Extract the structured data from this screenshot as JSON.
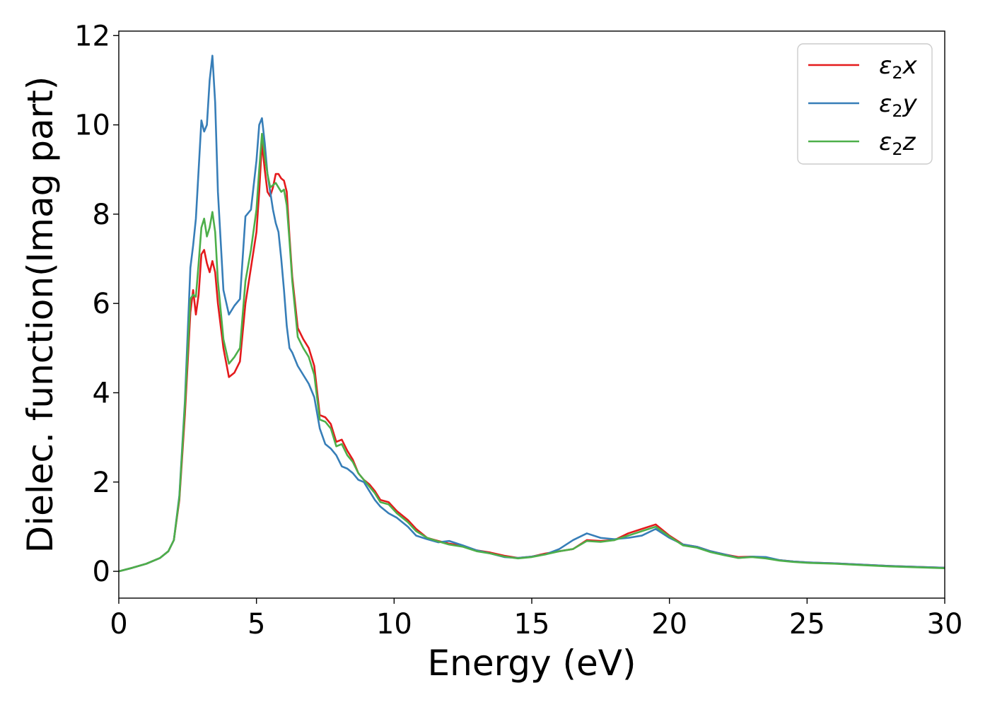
{
  "chart_data": {
    "type": "line",
    "xlabel": "Energy (eV)",
    "ylabel": "Dielec. function(Imag part)",
    "xlim": [
      0,
      30
    ],
    "ylim": [
      -0.6,
      12.1
    ],
    "xticks": [
      0,
      5,
      10,
      15,
      20,
      25,
      30
    ],
    "yticks": [
      0,
      2,
      4,
      6,
      8,
      10,
      12
    ],
    "grid": false,
    "legend_position": "top-right",
    "series": [
      {
        "name": "ε₂x",
        "legend_base": "ε",
        "legend_sub": "2",
        "legend_suffix": "x",
        "color": "#e41a1c",
        "x": [
          0,
          0.5,
          1,
          1.5,
          1.8,
          2,
          2.2,
          2.4,
          2.6,
          2.7,
          2.8,
          2.9,
          3.0,
          3.1,
          3.2,
          3.3,
          3.4,
          3.5,
          3.6,
          3.8,
          4.0,
          4.2,
          4.4,
          4.6,
          4.8,
          5.0,
          5.1,
          5.2,
          5.3,
          5.4,
          5.5,
          5.6,
          5.7,
          5.8,
          5.9,
          6.0,
          6.1,
          6.2,
          6.3,
          6.5,
          6.7,
          6.9,
          7.1,
          7.3,
          7.5,
          7.7,
          7.9,
          8.1,
          8.3,
          8.5,
          8.7,
          8.9,
          9.1,
          9.3,
          9.5,
          9.8,
          10.1,
          10.5,
          10.8,
          11.2,
          11.6,
          12,
          12.5,
          13,
          13.5,
          14,
          14.5,
          15,
          15.5,
          16,
          16.5,
          17,
          17.5,
          18,
          18.5,
          19,
          19.5,
          20,
          20.5,
          21,
          21.5,
          22,
          22.5,
          23,
          23.5,
          24,
          24.5,
          25,
          26,
          27,
          28,
          29,
          30
        ],
        "y": [
          0,
          0.08,
          0.17,
          0.3,
          0.45,
          0.7,
          1.6,
          3.5,
          5.8,
          6.3,
          5.75,
          6.2,
          7.1,
          7.2,
          6.9,
          6.7,
          6.95,
          6.7,
          6.0,
          5.0,
          4.35,
          4.45,
          4.7,
          6.0,
          6.8,
          7.6,
          8.5,
          9.6,
          9.0,
          8.5,
          8.4,
          8.6,
          8.9,
          8.9,
          8.8,
          8.75,
          8.5,
          7.5,
          6.6,
          5.45,
          5.2,
          5.0,
          4.6,
          3.5,
          3.45,
          3.3,
          2.9,
          2.95,
          2.7,
          2.5,
          2.2,
          2.05,
          1.95,
          1.8,
          1.6,
          1.55,
          1.35,
          1.15,
          0.95,
          0.75,
          0.68,
          0.62,
          0.57,
          0.47,
          0.42,
          0.35,
          0.3,
          0.33,
          0.4,
          0.45,
          0.5,
          0.7,
          0.68,
          0.7,
          0.85,
          0.95,
          1.05,
          0.8,
          0.6,
          0.55,
          0.45,
          0.38,
          0.32,
          0.33,
          0.3,
          0.25,
          0.22,
          0.2,
          0.18,
          0.15,
          0.12,
          0.1,
          0.08
        ]
      },
      {
        "name": "ε₂y",
        "legend_base": "ε",
        "legend_sub": "2",
        "legend_suffix": "y",
        "color": "#377eb8",
        "x": [
          0,
          0.5,
          1,
          1.5,
          1.8,
          2,
          2.2,
          2.4,
          2.6,
          2.7,
          2.8,
          2.9,
          3.0,
          3.1,
          3.2,
          3.3,
          3.4,
          3.5,
          3.6,
          3.8,
          4.0,
          4.2,
          4.4,
          4.6,
          4.8,
          5.0,
          5.1,
          5.2,
          5.3,
          5.4,
          5.5,
          5.6,
          5.7,
          5.8,
          5.9,
          6.0,
          6.1,
          6.2,
          6.3,
          6.5,
          6.7,
          6.9,
          7.1,
          7.3,
          7.5,
          7.7,
          7.9,
          8.1,
          8.3,
          8.5,
          8.7,
          8.9,
          9.1,
          9.3,
          9.5,
          9.8,
          10.1,
          10.5,
          10.8,
          11.2,
          11.6,
          12,
          12.5,
          13,
          13.5,
          14,
          14.5,
          15,
          15.5,
          16,
          16.5,
          17,
          17.5,
          18,
          18.5,
          19,
          19.5,
          20,
          20.5,
          21,
          21.5,
          22,
          22.5,
          23,
          23.5,
          24,
          24.5,
          25,
          26,
          27,
          28,
          29,
          30
        ],
        "y": [
          0,
          0.08,
          0.17,
          0.3,
          0.45,
          0.7,
          1.7,
          3.8,
          6.8,
          7.3,
          7.9,
          9.0,
          10.1,
          9.85,
          10.0,
          11.0,
          11.55,
          10.5,
          8.5,
          6.3,
          5.75,
          5.95,
          6.1,
          7.95,
          8.1,
          9.2,
          10.0,
          10.15,
          9.6,
          8.9,
          8.5,
          8.1,
          7.8,
          7.6,
          7.0,
          6.3,
          5.5,
          5.0,
          4.9,
          4.6,
          4.4,
          4.2,
          3.9,
          3.2,
          2.85,
          2.75,
          2.6,
          2.35,
          2.3,
          2.2,
          2.05,
          2.0,
          1.8,
          1.6,
          1.45,
          1.3,
          1.2,
          1.0,
          0.8,
          0.72,
          0.65,
          0.68,
          0.58,
          0.47,
          0.4,
          0.32,
          0.3,
          0.33,
          0.38,
          0.5,
          0.7,
          0.85,
          0.75,
          0.72,
          0.75,
          0.8,
          0.95,
          0.75,
          0.6,
          0.55,
          0.45,
          0.38,
          0.3,
          0.33,
          0.32,
          0.25,
          0.22,
          0.2,
          0.18,
          0.15,
          0.12,
          0.1,
          0.08
        ]
      },
      {
        "name": "ε₂z",
        "legend_base": "ε",
        "legend_sub": "2",
        "legend_suffix": "z",
        "color": "#4daf4a",
        "x": [
          0,
          0.5,
          1,
          1.5,
          1.8,
          2,
          2.2,
          2.4,
          2.6,
          2.7,
          2.8,
          2.9,
          3.0,
          3.1,
          3.2,
          3.3,
          3.4,
          3.5,
          3.6,
          3.8,
          4.0,
          4.2,
          4.4,
          4.6,
          4.8,
          5.0,
          5.1,
          5.2,
          5.3,
          5.4,
          5.5,
          5.6,
          5.7,
          5.8,
          5.9,
          6.0,
          6.1,
          6.2,
          6.3,
          6.5,
          6.7,
          6.9,
          7.1,
          7.3,
          7.5,
          7.7,
          7.9,
          8.1,
          8.3,
          8.5,
          8.7,
          8.9,
          9.1,
          9.3,
          9.5,
          9.8,
          10.1,
          10.5,
          10.8,
          11.2,
          11.6,
          12,
          12.5,
          13,
          13.5,
          14,
          14.5,
          15,
          15.5,
          16,
          16.5,
          17,
          17.5,
          18,
          18.5,
          19,
          19.5,
          20,
          20.5,
          21,
          21.5,
          22,
          22.5,
          23,
          23.5,
          24,
          24.5,
          25,
          26,
          27,
          28,
          29,
          30
        ],
        "y": [
          0,
          0.08,
          0.17,
          0.3,
          0.45,
          0.7,
          1.65,
          3.7,
          6.1,
          6.2,
          6.15,
          6.9,
          7.7,
          7.9,
          7.5,
          7.7,
          8.05,
          7.6,
          6.5,
          5.2,
          4.65,
          4.8,
          5.0,
          6.5,
          7.2,
          8.1,
          9.0,
          9.8,
          9.3,
          8.9,
          8.6,
          8.65,
          8.7,
          8.6,
          8.5,
          8.55,
          8.2,
          7.4,
          6.5,
          5.25,
          5.0,
          4.8,
          4.4,
          3.4,
          3.35,
          3.2,
          2.8,
          2.85,
          2.6,
          2.45,
          2.2,
          2.05,
          1.9,
          1.75,
          1.55,
          1.5,
          1.3,
          1.1,
          0.9,
          0.75,
          0.67,
          0.6,
          0.55,
          0.45,
          0.4,
          0.33,
          0.29,
          0.32,
          0.38,
          0.45,
          0.5,
          0.68,
          0.66,
          0.7,
          0.8,
          0.9,
          1.0,
          0.78,
          0.58,
          0.53,
          0.43,
          0.36,
          0.3,
          0.32,
          0.29,
          0.24,
          0.21,
          0.19,
          0.17,
          0.14,
          0.11,
          0.09,
          0.07
        ]
      }
    ]
  }
}
